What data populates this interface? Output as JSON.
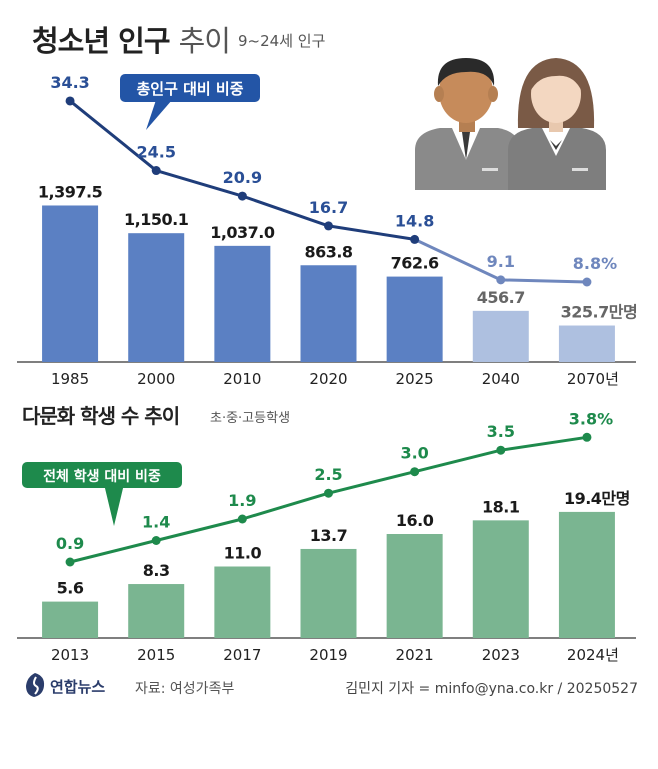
{
  "header": {
    "title_bold": "청소년 인구",
    "title_light": "추이",
    "subtitle": "9~24세 인구"
  },
  "chart_data": [
    {
      "type": "bar",
      "categories": [
        "1985",
        "2000",
        "2010",
        "2020",
        "2025",
        "2040",
        "2070년"
      ],
      "series": [
        {
          "values": [
            1397.5,
            1150.1,
            1037.0,
            863.8,
            762.6,
            456.7,
            325.7
          ],
          "value_labels": [
            "1,397.5",
            "1,150.1",
            "1,037.0",
            "863.8",
            "762.6",
            "456.7",
            "325.7만명"
          ],
          "projected_from_index": 5
        }
      ],
      "line_series": {
        "name": "총인구 대비 비중",
        "values": [
          34.3,
          24.5,
          20.9,
          16.7,
          14.8,
          9.1,
          8.8
        ],
        "value_labels": [
          "34.3",
          "24.5",
          "20.9",
          "16.7",
          "14.8",
          "9.1",
          "8.8%"
        ]
      },
      "colors": {
        "bar": "#5b80c3",
        "bar_projected": "#aec0e0",
        "line": "#1f3d7a",
        "line_projected": "#6f87bd",
        "line_label": "#2a4f96"
      }
    },
    {
      "type": "bar",
      "title": "다문화 학생 수 추이",
      "subtitle": "초·중·고등학생",
      "categories": [
        "2013",
        "2015",
        "2017",
        "2019",
        "2021",
        "2023",
        "2024년"
      ],
      "series": [
        {
          "values": [
            5.6,
            8.3,
            11.0,
            13.7,
            16.0,
            18.1,
            19.4
          ],
          "value_labels": [
            "5.6",
            "8.3",
            "11.0",
            "13.7",
            "16.0",
            "18.1",
            "19.4만명"
          ]
        }
      ],
      "line_series": {
        "name": "전체 학생 대비 비중",
        "values": [
          0.9,
          1.4,
          1.9,
          2.5,
          3.0,
          3.5,
          3.8
        ],
        "value_labels": [
          "0.9",
          "1.4",
          "1.9",
          "2.5",
          "3.0",
          "3.5",
          "3.8%"
        ]
      },
      "colors": {
        "bar": "#7ab591",
        "line": "#1e8a4c",
        "line_label": "#1e8a4c"
      }
    }
  ],
  "footer": {
    "logo": "연합뉴스",
    "source": "자료: 여성가족부",
    "credit": "김민지 기자 = minfo@yna.co.kr / 20250527"
  }
}
